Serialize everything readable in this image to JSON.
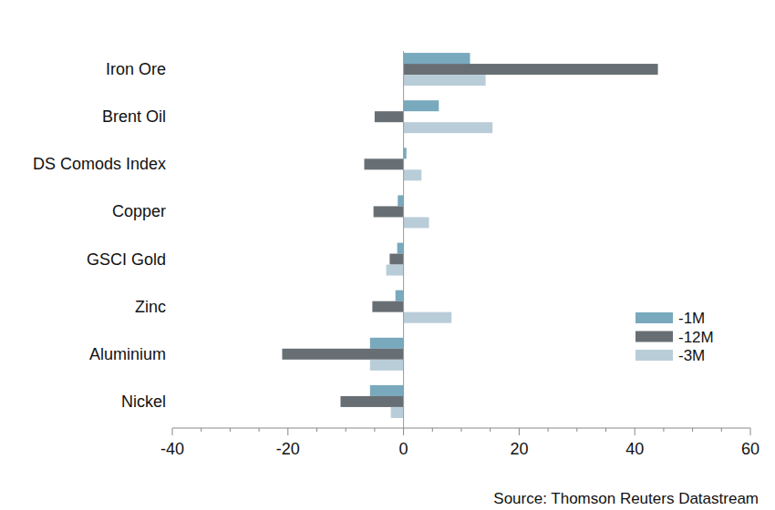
{
  "chart_data": {
    "type": "bar",
    "orientation": "horizontal",
    "categories": [
      "Iron Ore",
      "Brent Oil",
      "DS Comods Index",
      "Copper",
      "GSCI Gold",
      "Zinc",
      "Aluminium",
      "Nickel"
    ],
    "series": [
      {
        "name": "-1M",
        "color": "#78a9bd",
        "values": [
          11.5,
          6.1,
          0.5,
          -1.0,
          -1.1,
          -1.4,
          -5.8,
          -5.8
        ]
      },
      {
        "name": "-12M",
        "color": "#686f74",
        "values": [
          44,
          -5.0,
          -6.8,
          -5.2,
          -2.4,
          -5.4,
          -21,
          -10.9
        ]
      },
      {
        "name": "-3M",
        "color": "#b9cdd9",
        "values": [
          14.2,
          15.4,
          3.1,
          4.4,
          -3.0,
          8.3,
          -5.8,
          -2.2
        ]
      }
    ],
    "xlim": [
      -40,
      60
    ],
    "xticks": [
      -40,
      -20,
      0,
      20,
      40,
      60
    ],
    "legend": "right",
    "source": "Source: Thomson Reuters Datastream"
  }
}
